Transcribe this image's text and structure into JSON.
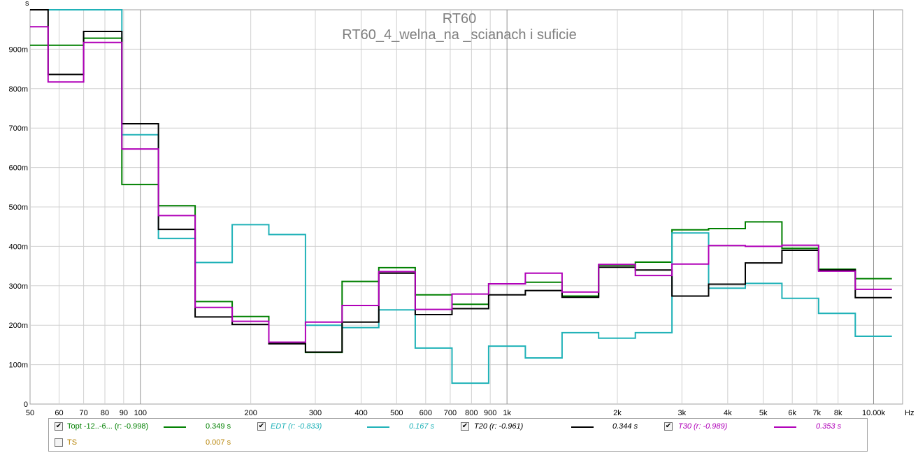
{
  "chart_data": {
    "type": "line",
    "step": true,
    "title": "RT60",
    "subtitle": "RT60_4_welna_na _scianach i suficie",
    "ylabel": "s",
    "xlabel": "Hz",
    "x_scale": "log",
    "xlim": [
      50,
      12000
    ],
    "ylim": [
      0,
      1.0
    ],
    "grid": true,
    "y_ticks": [
      {
        "v": 0,
        "label": "0"
      },
      {
        "v": 0.1,
        "label": "100m"
      },
      {
        "v": 0.2,
        "label": "200m"
      },
      {
        "v": 0.3,
        "label": "300m"
      },
      {
        "v": 0.4,
        "label": "400m"
      },
      {
        "v": 0.5,
        "label": "500m"
      },
      {
        "v": 0.6,
        "label": "600m"
      },
      {
        "v": 0.7,
        "label": "700m"
      },
      {
        "v": 0.8,
        "label": "800m"
      },
      {
        "v": 0.9,
        "label": "900m"
      }
    ],
    "x_ticks": [
      {
        "v": 50,
        "label": "50"
      },
      {
        "v": 60,
        "label": "60"
      },
      {
        "v": 70,
        "label": "70"
      },
      {
        "v": 80,
        "label": "80"
      },
      {
        "v": 90,
        "label": "90"
      },
      {
        "v": 100,
        "label": "100"
      },
      {
        "v": 200,
        "label": "200"
      },
      {
        "v": 300,
        "label": "300"
      },
      {
        "v": 400,
        "label": "400"
      },
      {
        "v": 500,
        "label": "500"
      },
      {
        "v": 600,
        "label": "600"
      },
      {
        "v": 700,
        "label": "700"
      },
      {
        "v": 800,
        "label": "800"
      },
      {
        "v": 900,
        "label": "900"
      },
      {
        "v": 1000,
        "label": "1k"
      },
      {
        "v": 2000,
        "label": "2k"
      },
      {
        "v": 3000,
        "label": "3k"
      },
      {
        "v": 4000,
        "label": "4k"
      },
      {
        "v": 5000,
        "label": "5k"
      },
      {
        "v": 6000,
        "label": "6k"
      },
      {
        "v": 7000,
        "label": "7k"
      },
      {
        "v": 8000,
        "label": "8k"
      },
      {
        "v": 10000,
        "label": "10.00k"
      }
    ],
    "x_edges": [
      50,
      56,
      70,
      89,
      112,
      141,
      178,
      224,
      282,
      355,
      447,
      562,
      708,
      891,
      1122,
      1413,
      1778,
      2239,
      2818,
      3548,
      4467,
      5623,
      7079,
      8913,
      11220
    ],
    "series": [
      {
        "name": "Topt",
        "color": "#008000",
        "values": [
          0.91,
          0.91,
          0.928,
          0.557,
          0.503,
          0.26,
          0.222,
          0.155,
          0.131,
          0.311,
          0.346,
          0.277,
          0.253,
          0.305,
          0.309,
          0.274,
          0.352,
          0.36,
          0.442,
          0.445,
          0.462,
          0.395,
          0.342,
          0.318
        ]
      },
      {
        "name": "EDT",
        "color": "#20b2b8",
        "values": [
          1.0,
          1.0,
          1.0,
          0.683,
          0.42,
          0.359,
          0.455,
          0.43,
          0.2,
          0.194,
          0.239,
          0.142,
          0.053,
          0.147,
          0.117,
          0.181,
          0.167,
          0.181,
          0.434,
          0.294,
          0.306,
          0.268,
          0.23,
          0.172
        ]
      },
      {
        "name": "T20",
        "color": "#000000",
        "values": [
          1.0,
          0.836,
          0.945,
          0.711,
          0.443,
          0.221,
          0.202,
          0.153,
          0.132,
          0.208,
          0.332,
          0.227,
          0.242,
          0.277,
          0.288,
          0.271,
          0.347,
          0.34,
          0.274,
          0.304,
          0.358,
          0.39,
          0.34,
          0.27
        ]
      },
      {
        "name": "T30",
        "color": "#b000b8",
        "values": [
          0.957,
          0.817,
          0.917,
          0.647,
          0.478,
          0.245,
          0.21,
          0.157,
          0.208,
          0.25,
          0.336,
          0.24,
          0.279,
          0.305,
          0.332,
          0.284,
          0.354,
          0.326,
          0.355,
          0.402,
          0.4,
          0.403,
          0.337,
          0.291
        ]
      }
    ]
  },
  "legend": [
    {
      "label": "Topt -12..-6... (r: -0.998)",
      "value": "0.349 s",
      "checked": true,
      "color": "#008000",
      "italic": false
    },
    {
      "label": "EDT (r: -0.833)",
      "value": "0.167 s",
      "checked": true,
      "color": "#20b2b8",
      "italic": true
    },
    {
      "label": "T20 (r: -0.961)",
      "value": "0.344 s",
      "checked": true,
      "color": "#000000",
      "italic": true
    },
    {
      "label": "T30 (r: -0.989)",
      "value": "0.353 s",
      "checked": true,
      "color": "#b000b8",
      "italic": true
    },
    {
      "label": "TS",
      "value": "0.007 s",
      "checked": false,
      "color": "#b8860b",
      "italic": false
    }
  ]
}
